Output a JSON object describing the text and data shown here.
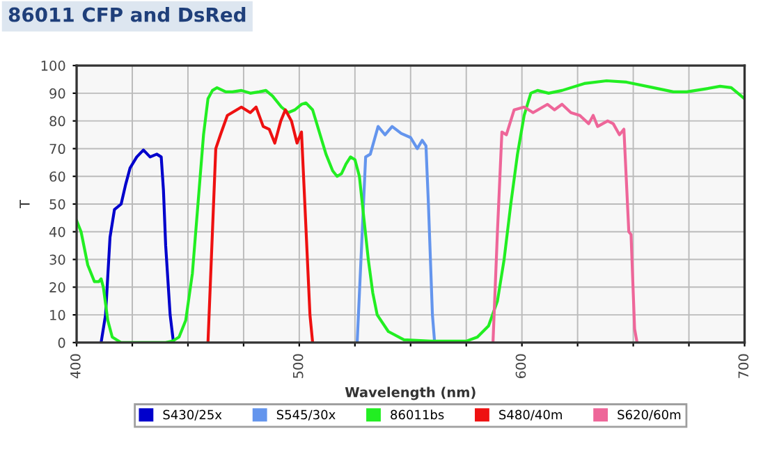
{
  "chart_data": {
    "type": "line",
    "title": "86011 CFP and DsRed",
    "xlabel": "Wavelength (nm)",
    "ylabel": "T",
    "xlim": [
      400,
      700
    ],
    "ylim": [
      0,
      100
    ],
    "xticks": [
      400,
      {
        "value": 425,
        "label": null
      },
      {
        "value": 450,
        "label": null
      },
      {
        "value": 475,
        "label": null
      },
      500,
      {
        "value": 525,
        "label": null
      },
      {
        "value": 550,
        "label": null
      },
      {
        "value": 575,
        "label": null
      },
      600,
      {
        "value": 625,
        "label": null
      },
      {
        "value": 650,
        "label": null
      },
      {
        "value": 675,
        "label": null
      },
      700
    ],
    "yticks": [
      0,
      10,
      20,
      30,
      40,
      50,
      60,
      70,
      80,
      90,
      100
    ],
    "grid": true,
    "legend": "bottom",
    "marker": "none",
    "line_style": "solid",
    "series": [
      {
        "name": "S430/25x",
        "color": "#0000cc",
        "x": [
          411,
          413,
          415,
          417,
          420,
          422,
          424,
          427,
          430,
          433,
          436,
          438,
          439,
          440,
          442,
          443.5
        ],
        "values": [
          0,
          10,
          38,
          48,
          50,
          57,
          63,
          67,
          69.5,
          67,
          68,
          67,
          55,
          35,
          10,
          0
        ]
      },
      {
        "name": "S545/30x",
        "color": "#6495ed",
        "x": [
          526,
          528,
          529.8,
          531.9,
          535.4,
          538.5,
          541.7,
          545.8,
          550,
          553,
          555.2,
          556.9,
          558,
          559.8,
          560.8
        ],
        "values": [
          0,
          35,
          67,
          68,
          78,
          75,
          78,
          75.5,
          74,
          70,
          73,
          71,
          50,
          10,
          0
        ]
      },
      {
        "name": "86011bs",
        "color": "#22ee22",
        "x": [
          400,
          402,
          405,
          408,
          410,
          411,
          412,
          414,
          416,
          420,
          440,
          443,
          446,
          449,
          452,
          455,
          457,
          459,
          461,
          463,
          467,
          470,
          474,
          478,
          482,
          485,
          488,
          492,
          495,
          498,
          501,
          503,
          506,
          509,
          512,
          515,
          517,
          519,
          521,
          523,
          525,
          527,
          529,
          531,
          533,
          535,
          540,
          547,
          559,
          575,
          580,
          585,
          589,
          592,
          595,
          598,
          601,
          604,
          607,
          612,
          618,
          628,
          638,
          647,
          659,
          668,
          674,
          682,
          689,
          694,
          700
        ],
        "values": [
          44,
          40,
          28,
          22,
          22,
          23,
          20,
          8,
          2,
          0,
          0,
          0.5,
          2,
          8,
          25,
          55,
          75,
          88,
          91,
          92,
          90.5,
          90.5,
          91,
          90,
          90.5,
          91,
          89,
          85,
          83,
          84,
          86,
          86.5,
          84,
          76,
          68,
          62,
          60,
          61,
          64.5,
          67,
          66,
          60,
          45,
          30,
          18,
          10,
          4,
          1,
          0.5,
          0.5,
          2,
          6,
          15,
          30,
          50,
          68,
          82,
          90,
          91,
          90,
          91,
          93.5,
          94.5,
          94,
          92,
          90.5,
          90.5,
          91.5,
          92.5,
          92,
          88
        ]
      },
      {
        "name": "S480/40m",
        "color": "#ee1111",
        "x": [
          459,
          461,
          462.5,
          464.6,
          467.7,
          469.8,
          474,
          478,
          480.6,
          483.8,
          486.5,
          489,
          491.7,
          493.75,
          496.5,
          499,
          501,
          502.5,
          504.8,
          506
        ],
        "values": [
          0,
          40,
          70,
          75,
          82,
          83,
          85,
          83,
          85,
          78,
          77,
          72,
          80,
          84,
          80,
          72,
          76,
          50,
          10,
          0
        ]
      },
      {
        "name": "S620/60m",
        "color": "#ee6699",
        "x": [
          587,
          589,
          591,
          593,
          596.5,
          601,
          605,
          611.5,
          614.6,
          618,
          622,
          626,
          630,
          632,
          634,
          638.5,
          641,
          643.8,
          645.8,
          648,
          649,
          650.6,
          651.7
        ],
        "values": [
          0,
          40,
          76,
          75,
          84,
          85,
          83,
          86,
          84,
          86,
          83,
          82,
          79,
          82,
          78,
          80,
          79,
          75,
          77,
          40,
          39,
          5,
          0
        ]
      }
    ]
  }
}
